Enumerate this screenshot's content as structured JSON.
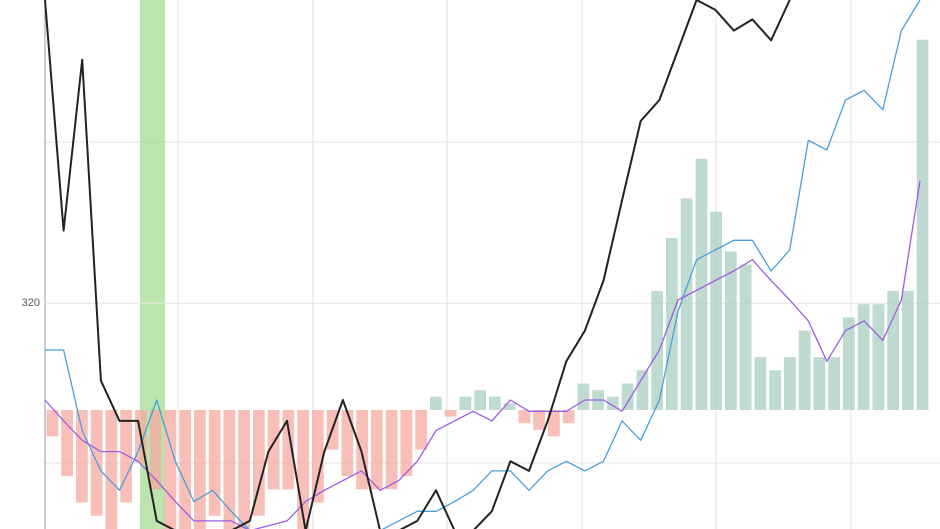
{
  "chart_data": {
    "type": "line",
    "ylim": [
      306,
      338.8
    ],
    "yticks": [
      320
    ],
    "y2lim": [
      -0.9,
      3.1
    ],
    "grid": true,
    "series": [
      {
        "type": "bar",
        "axis": "y2",
        "color": "#a9cfc2",
        "negative_color": "#f5aaa2",
        "values": [
          -0.2,
          -0.5,
          -0.7,
          -0.8,
          -0.9,
          -0.7,
          -0.4,
          -0.6,
          -0.9,
          -0.9,
          -0.9,
          -0.8,
          -0.9,
          -0.9,
          -0.8,
          -0.6,
          -0.6,
          -0.9,
          -0.7,
          -0.3,
          -0.5,
          -0.6,
          -0.6,
          -0.6,
          -0.5,
          -0.3,
          0.1,
          -0.05,
          0.1,
          0.15,
          0.1,
          0.05,
          -0.1,
          -0.15,
          -0.2,
          -0.1,
          0.2,
          0.15,
          0.1,
          0.2,
          0.3,
          0.9,
          1.3,
          1.6,
          1.9,
          1.5,
          1.2,
          1.1,
          0.4,
          0.3,
          0.4,
          0.6,
          0.4,
          0.4,
          0.7,
          0.8,
          0.8,
          0.9,
          0.9,
          2.8
        ]
      },
      {
        "type": "line",
        "color": "#4a9fd8",
        "values": [
          317.1,
          317.1,
          312.1,
          309.6,
          308.4,
          310.8,
          314.0,
          310.2,
          307.7,
          308.4,
          307.1,
          305.9,
          305.9,
          305.9,
          305.9,
          305.9,
          305.9,
          305.9,
          305.9,
          306.5,
          307.1,
          307.1,
          307.7,
          308.4,
          309.6,
          309.6,
          308.4,
          309.6,
          310.2,
          309.6,
          310.2,
          312.7,
          311.5,
          314.0,
          319.5,
          322.7,
          323.3,
          323.9,
          323.9,
          322.0,
          323.3,
          330.1,
          329.5,
          332.6,
          333.2,
          332.0,
          336.9,
          338.8
        ]
      },
      {
        "type": "line",
        "color": "#9b5de5",
        "values": [
          314.0,
          312.7,
          311.5,
          310.8,
          310.8,
          310.2,
          309.0,
          307.7,
          306.5,
          306.5,
          306.5,
          305.9,
          306.2,
          306.5,
          307.7,
          308.4,
          309.0,
          309.6,
          308.4,
          309.0,
          310.2,
          312.1,
          312.7,
          313.3,
          312.7,
          314.0,
          313.3,
          313.3,
          313.3,
          314.0,
          314.0,
          313.3,
          315.2,
          317.1,
          320.2,
          320.8,
          321.4,
          322.0,
          322.7,
          321.4,
          320.2,
          318.9,
          316.4,
          318.3,
          318.9,
          317.7,
          320.2,
          327.6
        ]
      },
      {
        "type": "line",
        "color": "#222222",
        "values": [
          338.8,
          324.5,
          335.1,
          315.2,
          312.7,
          312.7,
          306.5,
          305.9,
          305.9,
          305.9,
          305.9,
          306.5,
          310.8,
          312.7,
          305.9,
          310.8,
          314.0,
          310.8,
          305.9,
          305.9,
          306.5,
          308.4,
          305.9,
          305.9,
          307.1,
          310.2,
          309.6,
          312.7,
          316.4,
          318.3,
          321.4,
          326.4,
          331.3,
          332.6,
          335.7,
          338.8,
          338.2,
          336.9,
          337.6,
          336.3,
          338.8,
          null,
          null,
          null,
          null,
          null,
          null,
          null
        ]
      }
    ]
  }
}
